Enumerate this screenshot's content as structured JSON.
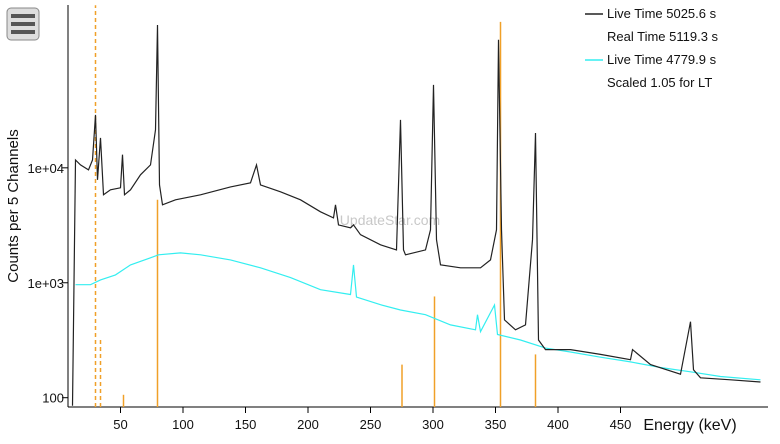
{
  "chart_data": {
    "type": "line",
    "xlabel": "Energy (keV)",
    "ylabel": "Counts per 5 Channels",
    "watermark": "UpdateStar.com",
    "log_y": true,
    "xlim": [
      8,
      568
    ],
    "ylim": [
      83,
      261000
    ],
    "xticks": [
      50,
      100,
      150,
      200,
      250,
      300,
      350,
      400,
      450
    ],
    "yticks": [
      {
        "value": 10000,
        "label": "1e+04"
      },
      {
        "value": 1000,
        "label": "1e+03"
      },
      100
    ],
    "legend": "top-right",
    "series": [
      {
        "name": "Live Time 5025.6 s",
        "detail": "Real Time 5119.3 s",
        "color": "#222222",
        "x": [
          11.6,
          14,
          18,
          24.4,
          27.6,
          30,
          31.6,
          34,
          36.4,
          42,
          50,
          51.6,
          53.2,
          58,
          66,
          74,
          78,
          79.6,
          81.2,
          83.6,
          94,
          114,
          138,
          154,
          158.8,
          162,
          178,
          194,
          210,
          220.4,
          222,
          224.4,
          234,
          236.4,
          242,
          258,
          270.8,
          274,
          276.4,
          278,
          294,
          298,
          300.4,
          302.8,
          306,
          322,
          338,
          346,
          350.8,
          352.4,
          354.8,
          357.2,
          366,
          374,
          379.6,
          382,
          384.4,
          390,
          410,
          434,
          458,
          459.6,
          474,
          498,
          506,
          508.4,
          514,
          538,
          562
        ],
        "values": [
          85,
          11700,
          10600,
          9600,
          11700,
          28900,
          7870,
          18200,
          5820,
          6440,
          6700,
          13000,
          5820,
          6440,
          8700,
          10600,
          21400,
          175000,
          7110,
          4770,
          5270,
          5820,
          6830,
          7410,
          10600,
          7110,
          6180,
          5270,
          4140,
          3670,
          4770,
          3190,
          3010,
          3190,
          2620,
          2140,
          1930,
          26100,
          1930,
          1750,
          1930,
          2890,
          52700,
          2370,
          1430,
          1350,
          1350,
          1580,
          2890,
          130000,
          2890,
          475,
          390,
          430,
          2370,
          20100,
          318,
          262,
          262,
          238,
          214,
          262,
          194,
          160,
          458,
          175,
          149,
          143,
          137
        ]
      },
      {
        "name": "Live Time 4779.9 s",
        "detail": "Scaled 1.05 for LT",
        "color": "#33eef0",
        "x": [
          14,
          26,
          34,
          46,
          58,
          74,
          80.4,
          98,
          114,
          138,
          162,
          186,
          210,
          234,
          236.4,
          238.8,
          258,
          274,
          294,
          314,
          334,
          335.6,
          338,
          349.2,
          351.6,
          370,
          390,
          410,
          434,
          458,
          482,
          506,
          530,
          562
        ],
        "values": [
          962,
          962,
          1060,
          1170,
          1430,
          1650,
          1750,
          1820,
          1750,
          1580,
          1350,
          1110,
          870,
          790,
          1430,
          750,
          644,
          580,
          527,
          430,
          390,
          527,
          375,
          640,
          355,
          318,
          270,
          250,
          225,
          205,
          183,
          168,
          153,
          143
        ]
      }
    ],
    "reference_lines": {
      "color": "#f0a028",
      "x": [
        30,
        34,
        52.4,
        79.6,
        275.2,
        301.2,
        354,
        382
      ],
      "values": [
        260000,
        318,
        106,
        5270,
        194,
        760,
        186000,
        238
      ],
      "dashed": [
        true,
        true,
        false,
        false,
        false,
        false,
        false,
        false
      ]
    }
  }
}
